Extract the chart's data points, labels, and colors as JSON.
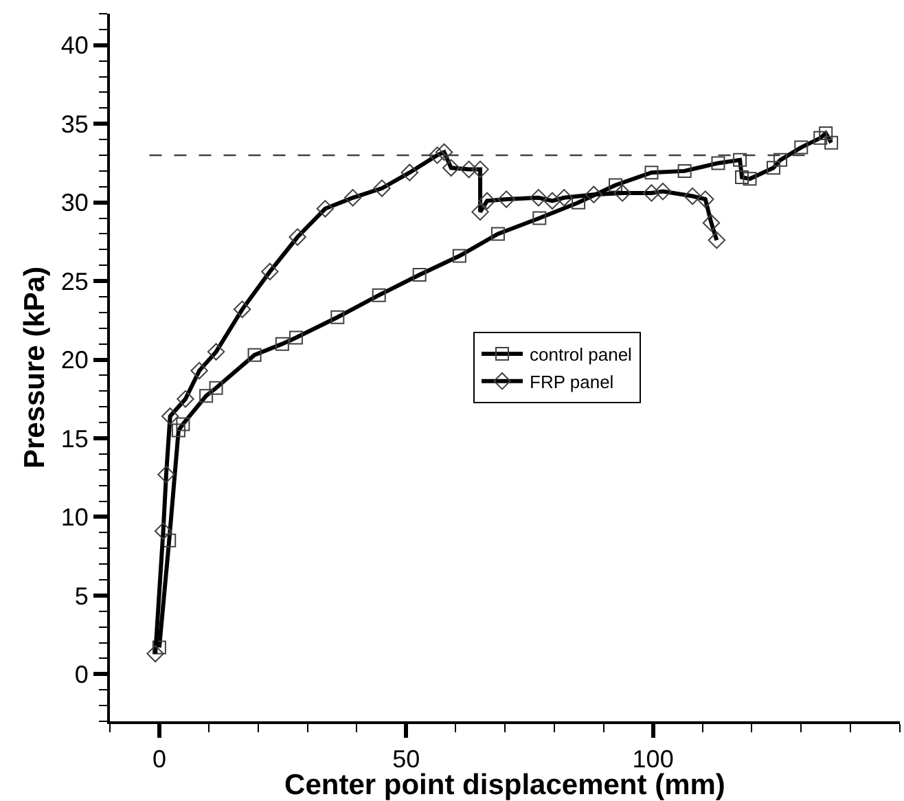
{
  "chart_data": {
    "type": "line",
    "xlabel": "Center point displacement (mm)",
    "ylabel": "Pressure (kPa)",
    "xlim": [
      -10,
      150
    ],
    "xticks": [
      0,
      50,
      100
    ],
    "ylim": [
      -3,
      42
    ],
    "yticks": [
      0,
      5,
      10,
      15,
      20,
      25,
      30,
      35,
      40
    ],
    "grid": false,
    "legend": "right",
    "line_style": "solid",
    "ref_lines": [
      {
        "axis": "y",
        "value": 33,
        "color": "#404040",
        "line_style": "dashed"
      }
    ],
    "series": [
      {
        "name": "control panel",
        "color": "#000000",
        "marker": "square",
        "x": [
          0,
          2,
          3.9,
          4.8,
          9.5,
          11.5,
          19.3,
          24.9,
          27.7,
          36.1,
          44.5,
          52.7,
          60.8,
          68.6,
          77,
          84.9,
          92.4,
          99.7,
          106.4,
          113.2,
          117.6,
          118,
          119.6,
          124.4,
          125.8,
          130,
          133.9,
          135,
          136.1
        ],
        "values": [
          1.7,
          8.5,
          15.5,
          15.9,
          17.7,
          18.2,
          20.3,
          21,
          21.4,
          22.7,
          24.1,
          25.4,
          26.6,
          28,
          29,
          30,
          31.1,
          31.9,
          32,
          32.5,
          32.7,
          31.6,
          31.5,
          32.2,
          32.7,
          33.5,
          34.1,
          34.4,
          33.8
        ]
      },
      {
        "name": "FRP panel",
        "color": "#000000",
        "marker": "diamond",
        "x": [
          -0.8,
          0.8,
          1.4,
          2.2,
          5.3,
          8.1,
          11.5,
          16.8,
          22.4,
          28,
          33.6,
          39.2,
          45.1,
          50.7,
          56.3,
          57.7,
          59.1,
          62.7,
          65,
          65,
          66.4,
          70.3,
          76.8,
          79.6,
          82,
          88,
          93.8,
          99.7,
          102,
          108,
          110.6,
          111.8,
          112.9
        ],
        "values": [
          1.3,
          9.1,
          12.7,
          16.4,
          17.5,
          19.3,
          20.5,
          23.2,
          25.6,
          27.8,
          29.6,
          30.3,
          30.9,
          31.9,
          33,
          33.2,
          32.2,
          32.1,
          32.1,
          29.4,
          30.1,
          30.2,
          30.3,
          30.1,
          30.3,
          30.5,
          30.6,
          30.6,
          30.7,
          30.4,
          30.2,
          28.7,
          27.6
        ]
      }
    ]
  }
}
